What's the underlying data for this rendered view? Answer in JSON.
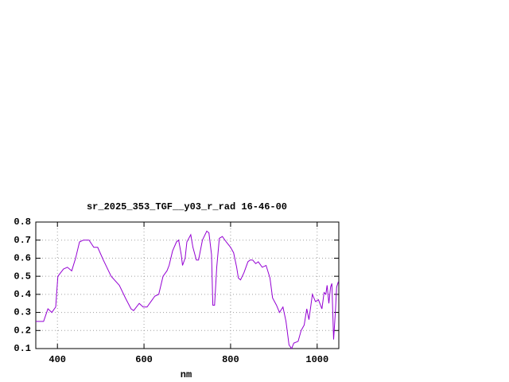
{
  "chart_data": {
    "type": "line",
    "title": "sr_2025_353_TGF__y03_r_rad 16-46-00",
    "xlabel": "nm",
    "color": "#9400d3",
    "grid": true,
    "xlim": [
      350,
      1050
    ],
    "ylim": [
      0.1,
      0.8
    ],
    "xticks": [
      400,
      600,
      800,
      1000
    ],
    "yticks": [
      0.1,
      0.2,
      0.3,
      0.4,
      0.5,
      0.6,
      0.7,
      0.8
    ],
    "x": [
      350,
      368,
      378,
      387,
      396,
      401,
      414,
      423,
      433,
      442,
      451,
      460,
      473,
      484,
      493,
      506,
      524,
      543,
      557,
      570,
      576,
      589,
      598,
      607,
      616,
      625,
      634,
      644,
      653,
      658,
      666,
      675,
      680,
      686,
      689,
      695,
      699,
      708,
      713,
      721,
      726,
      735,
      745,
      750,
      756,
      759,
      763,
      768,
      774,
      781,
      790,
      800,
      807,
      814,
      818,
      823,
      831,
      840,
      845,
      851,
      858,
      864,
      873,
      882,
      891,
      897,
      906,
      913,
      921,
      928,
      935,
      941,
      946,
      956,
      963,
      970,
      976,
      981,
      989,
      996,
      1003,
      1011,
      1016,
      1020,
      1023,
      1027,
      1031,
      1034,
      1038,
      1042,
      1045,
      1049
    ],
    "values": [
      0.25,
      0.25,
      0.32,
      0.3,
      0.33,
      0.5,
      0.54,
      0.55,
      0.53,
      0.6,
      0.69,
      0.7,
      0.7,
      0.66,
      0.66,
      0.59,
      0.5,
      0.45,
      0.38,
      0.32,
      0.31,
      0.35,
      0.33,
      0.33,
      0.36,
      0.39,
      0.4,
      0.5,
      0.53,
      0.56,
      0.64,
      0.69,
      0.7,
      0.62,
      0.56,
      0.6,
      0.69,
      0.73,
      0.66,
      0.59,
      0.59,
      0.7,
      0.75,
      0.74,
      0.62,
      0.34,
      0.34,
      0.55,
      0.71,
      0.72,
      0.69,
      0.66,
      0.63,
      0.55,
      0.49,
      0.48,
      0.52,
      0.58,
      0.59,
      0.59,
      0.57,
      0.58,
      0.55,
      0.56,
      0.49,
      0.38,
      0.34,
      0.3,
      0.33,
      0.25,
      0.12,
      0.1,
      0.13,
      0.14,
      0.2,
      0.23,
      0.32,
      0.26,
      0.4,
      0.36,
      0.37,
      0.32,
      0.41,
      0.4,
      0.45,
      0.35,
      0.44,
      0.46,
      0.15,
      0.3,
      0.44,
      0.47
    ]
  }
}
